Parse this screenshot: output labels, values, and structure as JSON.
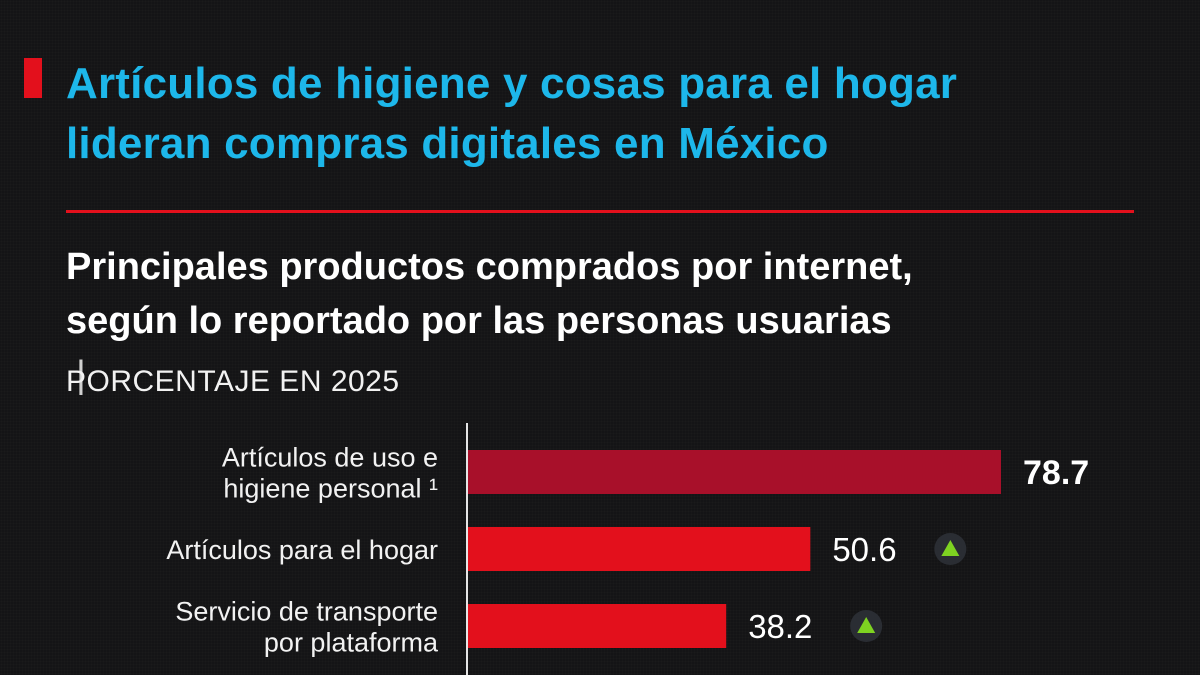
{
  "headline": {
    "line1": "Artículos de higiene y cosas para el hogar",
    "line2": "lideran compras digitales en México"
  },
  "subtitle": {
    "line1": "Principales productos comprados por internet,",
    "line2": "según lo reportado por las personas usuarias",
    "separator": "|"
  },
  "units": "PORCENTAJE EN 2025",
  "colors": {
    "accent_red": "#e3101c",
    "highlight_bar": "#a8102a",
    "headline_blue": "#1db7ea",
    "trend_up": "#7ed321"
  },
  "chart_data": {
    "type": "bar",
    "orientation": "horizontal",
    "title": "Principales productos comprados por internet, según lo reportado por las personas usuarias",
    "unit": "PORCENTAJE EN 2025",
    "categories": [
      [
        "Artículos de uso e",
        "higiene personal ¹"
      ],
      [
        "Artículos para el hogar"
      ],
      [
        "Servicio de transporte",
        "por plataforma"
      ]
    ],
    "values": [
      78.7,
      50.6,
      38.2
    ],
    "value_labels": [
      "78.7",
      "50.6",
      "38.2"
    ],
    "highlighted": [
      true,
      false,
      false
    ],
    "trend_up": [
      false,
      true,
      true
    ],
    "xlim": [
      0,
      100
    ],
    "grid": false,
    "legend": "none"
  }
}
